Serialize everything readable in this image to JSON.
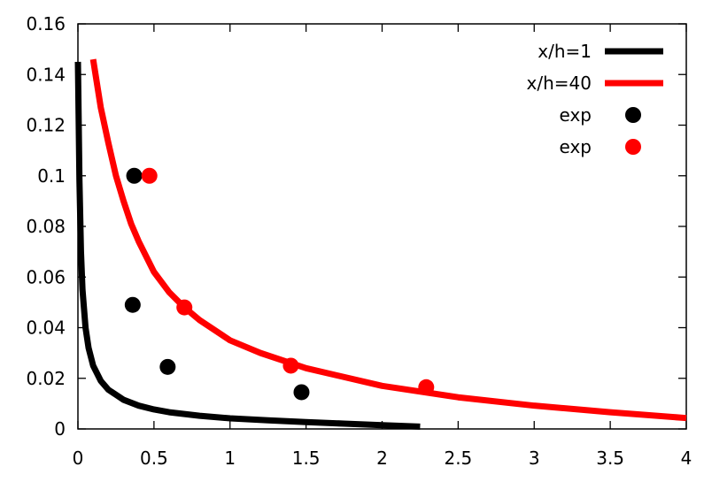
{
  "chart_data": {
    "type": "line",
    "title": "",
    "xlabel": "",
    "ylabel": "",
    "xlim": [
      0,
      4
    ],
    "ylim": [
      0,
      0.16
    ],
    "grid": false,
    "legend_position": "top-right",
    "x_ticks": [
      {
        "value": 0,
        "label": "0"
      },
      {
        "value": 0.5,
        "label": "0.5"
      },
      {
        "value": 1,
        "label": "1"
      },
      {
        "value": 1.5,
        "label": "1.5"
      },
      {
        "value": 2,
        "label": "2"
      },
      {
        "value": 2.5,
        "label": "2.5"
      },
      {
        "value": 3,
        "label": "3"
      },
      {
        "value": 3.5,
        "label": "3.5"
      },
      {
        "value": 4,
        "label": "4"
      }
    ],
    "y_ticks": [
      {
        "value": 0,
        "label": "0"
      },
      {
        "value": 0.02,
        "label": "0.02"
      },
      {
        "value": 0.04,
        "label": "0.04"
      },
      {
        "value": 0.06,
        "label": "0.06"
      },
      {
        "value": 0.08,
        "label": "0.08"
      },
      {
        "value": 0.1,
        "label": "0.1"
      },
      {
        "value": 0.12,
        "label": "0.12"
      },
      {
        "value": 0.14,
        "label": "0.14"
      },
      {
        "value": 0.16,
        "label": "0.16"
      }
    ],
    "series": [
      {
        "name": "x/h=1",
        "kind": "line",
        "color": "#000000",
        "x": [
          0.0,
          0.01,
          0.02,
          0.03,
          0.05,
          0.07,
          0.1,
          0.15,
          0.2,
          0.3,
          0.4,
          0.5,
          0.6,
          0.8,
          1.0,
          1.25,
          1.5,
          1.75,
          2.0,
          2.25
        ],
        "y": [
          0.145,
          0.098,
          0.07,
          0.055,
          0.04,
          0.032,
          0.025,
          0.019,
          0.0155,
          0.0115,
          0.0092,
          0.0077,
          0.0066,
          0.0052,
          0.0042,
          0.0034,
          0.0027,
          0.0021,
          0.0015,
          0.0009
        ]
      },
      {
        "name": "x/h=40",
        "kind": "line",
        "color": "#ff0000",
        "x": [
          0.1,
          0.15,
          0.2,
          0.25,
          0.3,
          0.35,
          0.4,
          0.5,
          0.6,
          0.7,
          0.8,
          1.0,
          1.2,
          1.5,
          2.0,
          2.5,
          3.0,
          3.5,
          4.0
        ],
        "y": [
          0.146,
          0.127,
          0.113,
          0.1,
          0.09,
          0.081,
          0.074,
          0.062,
          0.054,
          0.048,
          0.043,
          0.035,
          0.03,
          0.024,
          0.017,
          0.0125,
          0.0092,
          0.0066,
          0.0043
        ]
      },
      {
        "name": "exp",
        "kind": "scatter",
        "color": "#000000",
        "x": [
          0.37,
          0.36,
          0.59,
          1.47
        ],
        "y": [
          0.1,
          0.049,
          0.0245,
          0.0145
        ]
      },
      {
        "name": "exp",
        "kind": "scatter",
        "color": "#ff0000",
        "x": [
          0.47,
          0.7,
          1.4,
          2.29
        ],
        "y": [
          0.1,
          0.048,
          0.025,
          0.0165
        ]
      }
    ]
  }
}
